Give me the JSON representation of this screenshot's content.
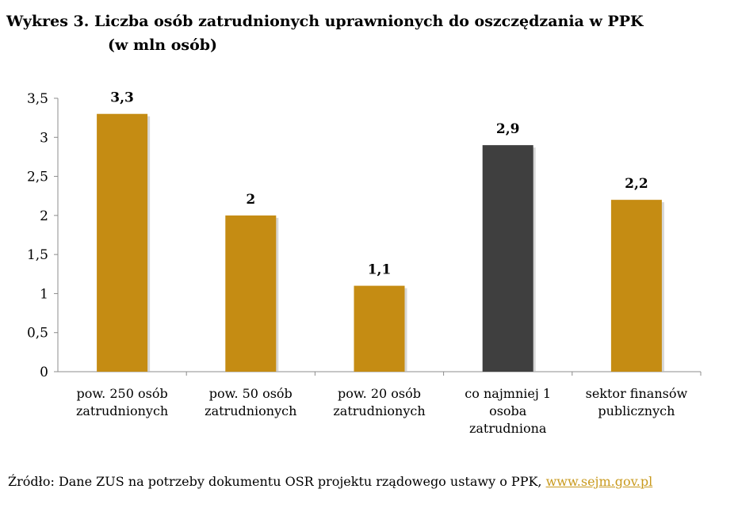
{
  "title": {
    "line1": "Wykres 3. Liczba osób zatrudnionych uprawnionych do oszczędzania w PPK",
    "line2": "(w mln osób)"
  },
  "chart_data": {
    "type": "bar",
    "categories": [
      [
        "pow. 250 osób",
        "zatrudnionych"
      ],
      [
        "pow. 50 osób",
        "zatrudnionych"
      ],
      [
        "pow. 20 osób",
        "zatrudnionych"
      ],
      [
        "co najmniej 1",
        "osoba",
        "zatrudniona"
      ],
      [
        "sektor finansów",
        "publicznych"
      ]
    ],
    "values": [
      3.3,
      2,
      1.1,
      2.9,
      2.2
    ],
    "value_labels": [
      "3,3",
      "2",
      "1,1",
      "2,9",
      "2,2"
    ],
    "bar_colors": [
      "#c58c13",
      "#c58c13",
      "#c58c13",
      "#3f3f3f",
      "#c58c13"
    ],
    "ylim": [
      0,
      3.5
    ],
    "yticks": [
      0,
      0.5,
      1,
      1.5,
      2,
      2.5,
      3,
      3.5
    ],
    "ytick_labels": [
      "0",
      "0,5",
      "1",
      "1,5",
      "2",
      "2,5",
      "3",
      "3,5"
    ],
    "grid": false,
    "xlabel": "",
    "ylabel": ""
  },
  "source": {
    "text": "Źródło: Dane ZUS na potrzeby dokumentu OSR projektu rządowego ustawy o PPK, ",
    "link": "www.sejm.gov.pl"
  }
}
